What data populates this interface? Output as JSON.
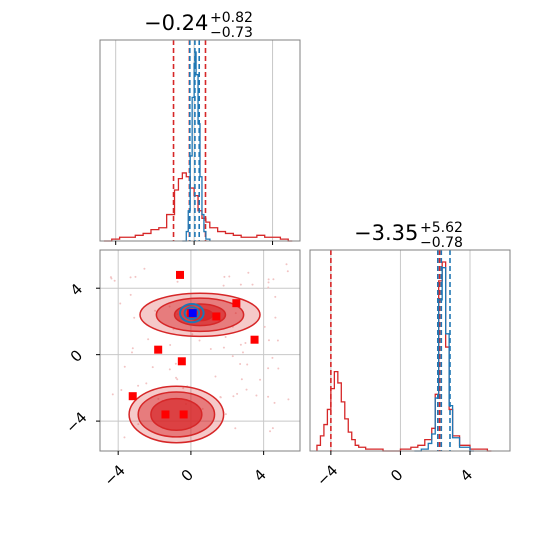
{
  "chart_data": [
    {
      "type": "histogram",
      "panel": "top-left",
      "title": "−0.24",
      "title_upper": "+0.82",
      "title_lower": "−0.73",
      "x_range": [
        -4.8,
        5.4
      ],
      "x_ticks": [
        -4,
        0,
        4
      ],
      "grid": true,
      "series": [
        {
          "color": "#d62728",
          "bins": [
            [
              -4.6,
              0.0
            ],
            [
              -4.2,
              0.01
            ],
            [
              -3.8,
              0.02
            ],
            [
              -3.4,
              0.02
            ],
            [
              -3.0,
              0.03
            ],
            [
              -2.6,
              0.04
            ],
            [
              -2.2,
              0.06
            ],
            [
              -1.8,
              0.07
            ],
            [
              -1.4,
              0.14
            ],
            [
              -1.0,
              0.27
            ],
            [
              -0.8,
              0.33
            ],
            [
              -0.6,
              0.36
            ],
            [
              -0.4,
              0.34
            ],
            [
              -0.2,
              0.28
            ],
            [
              0.0,
              0.24
            ],
            [
              0.2,
              0.16
            ],
            [
              0.4,
              0.12
            ],
            [
              0.6,
              0.1
            ],
            [
              0.8,
              0.07
            ],
            [
              1.2,
              0.05
            ],
            [
              1.6,
              0.04
            ],
            [
              2.0,
              0.03
            ],
            [
              2.4,
              0.02
            ],
            [
              2.8,
              0.02
            ],
            [
              3.2,
              0.03
            ],
            [
              3.6,
              0.02
            ],
            [
              4.0,
              0.02
            ],
            [
              4.4,
              0.01
            ],
            [
              4.8,
              0.0
            ]
          ],
          "dashed_lines": [
            -1.05,
            -0.24,
            0.58
          ]
        },
        {
          "color": "#1f77b4",
          "bins": [
            [
              -0.6,
              0.0
            ],
            [
              -0.4,
              0.05
            ],
            [
              -0.3,
              0.16
            ],
            [
              -0.2,
              0.45
            ],
            [
              -0.1,
              0.76
            ],
            [
              0.0,
              0.94
            ],
            [
              0.05,
              1.0
            ],
            [
              0.1,
              0.88
            ],
            [
              0.2,
              0.62
            ],
            [
              0.3,
              0.34
            ],
            [
              0.4,
              0.14
            ],
            [
              0.5,
              0.05
            ],
            [
              0.6,
              0.01
            ]
          ],
          "dashed_lines": [
            -0.22,
            0.04,
            0.26
          ]
        }
      ]
    },
    {
      "type": "histogram",
      "panel": "bottom-right",
      "title": "−3.35",
      "title_upper": "+5.62",
      "title_lower": "−0.78",
      "x_range": [
        -5.2,
        6.3
      ],
      "x_ticks": [
        -4,
        0,
        4
      ],
      "grid": true,
      "series": [
        {
          "color": "#d62728",
          "bins": [
            [
              -4.8,
              0.03
            ],
            [
              -4.6,
              0.08
            ],
            [
              -4.4,
              0.14
            ],
            [
              -4.2,
              0.22
            ],
            [
              -4.0,
              0.33
            ],
            [
              -3.8,
              0.42
            ],
            [
              -3.6,
              0.36
            ],
            [
              -3.4,
              0.26
            ],
            [
              -3.2,
              0.17
            ],
            [
              -3.0,
              0.1
            ],
            [
              -2.8,
              0.06
            ],
            [
              -2.6,
              0.03
            ],
            [
              -2.4,
              0.02
            ],
            [
              -2.0,
              0.01
            ],
            [
              -1.0,
              0.0
            ],
            [
              0.0,
              0.01
            ],
            [
              0.6,
              0.02
            ],
            [
              1.0,
              0.03
            ],
            [
              1.4,
              0.06
            ],
            [
              1.8,
              0.12
            ],
            [
              2.0,
              0.3
            ],
            [
              2.2,
              0.9
            ],
            [
              2.4,
              1.0
            ],
            [
              2.6,
              0.55
            ],
            [
              2.8,
              0.22
            ],
            [
              3.0,
              0.08
            ],
            [
              3.4,
              0.03
            ],
            [
              4.0,
              0.01
            ],
            [
              5.0,
              0.0
            ]
          ],
          "dashed_lines": [
            -4.0,
            2.15,
            2.25
          ]
        },
        {
          "color": "#1f77b4",
          "bins": [
            [
              0.8,
              0.0
            ],
            [
              1.2,
              0.01
            ],
            [
              1.6,
              0.04
            ],
            [
              1.8,
              0.09
            ],
            [
              2.0,
              0.28
            ],
            [
              2.2,
              0.8
            ],
            [
              2.4,
              0.97
            ],
            [
              2.6,
              0.62
            ],
            [
              2.8,
              0.24
            ],
            [
              3.0,
              0.07
            ],
            [
              3.4,
              0.02
            ],
            [
              4.0,
              0.0
            ]
          ],
          "dashed_lines": [
            2.15,
            2.35,
            2.85
          ]
        }
      ]
    },
    {
      "type": "scatter",
      "panel": "bottom-left",
      "x_range": [
        -5.0,
        6.0
      ],
      "y_range": [
        -5.8,
        6.3
      ],
      "x_ticks": [
        -4,
        0,
        4
      ],
      "y_ticks": [
        -4,
        0,
        4
      ],
      "grid": true,
      "markers": {
        "color": "#ff0000",
        "points": [
          [
            -0.6,
            4.8
          ],
          [
            -1.8,
            0.3
          ],
          [
            -3.2,
            -2.5
          ],
          [
            -0.5,
            -0.4
          ],
          [
            1.4,
            2.3
          ],
          [
            2.5,
            3.1
          ],
          [
            3.5,
            0.9
          ],
          [
            -1.4,
            -3.6
          ],
          [
            -0.4,
            -3.6
          ],
          [
            0.0,
            2.5
          ]
        ]
      },
      "highlight_point": {
        "color": "#0000ff",
        "x": 0.1,
        "y": 2.5
      },
      "contours": [
        {
          "color": "#d62728",
          "center": [
            0.5,
            2.4
          ],
          "rx": [
            3.3,
            2.4,
            1.4,
            0.7
          ],
          "ry": [
            1.3,
            1.0,
            0.65,
            0.35
          ]
        },
        {
          "color": "#d62728",
          "center": [
            -0.8,
            -3.6
          ],
          "rx": [
            2.6,
            2.1,
            1.4
          ],
          "ry": [
            1.7,
            1.35,
            0.95
          ]
        },
        {
          "color": "#1f77b4",
          "center": [
            0.05,
            2.5
          ],
          "rx": [
            0.65,
            0.4,
            0.2
          ],
          "ry": [
            0.55,
            0.35,
            0.17
          ]
        }
      ]
    }
  ]
}
